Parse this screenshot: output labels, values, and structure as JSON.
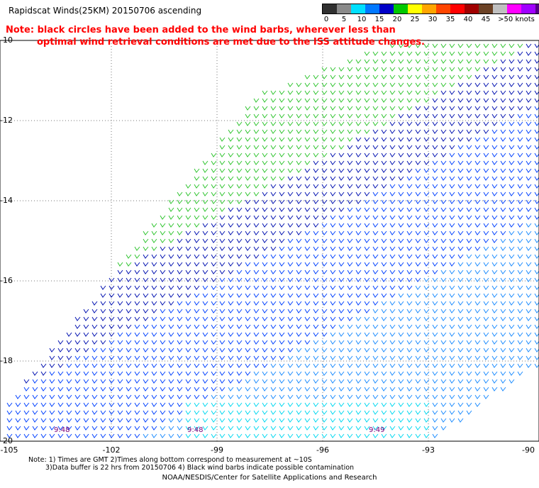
{
  "title": "Rapidscat Winds(25KM) 20150706 ascending",
  "note": {
    "line1": "Note: black circles have been added to the wind barbs, wherever less than",
    "line2": "optimal wind retrieval conditions are met due to the ISS attitude changes."
  },
  "scale": {
    "labels": [
      "0",
      "5",
      "10",
      "15",
      "20",
      "25",
      "30",
      "35",
      "40",
      "45",
      ">50 knots"
    ],
    "colors": [
      "#303030",
      "#8a8a8a",
      "#00e0ff",
      "#0078ff",
      "#0000c8",
      "#00c800",
      "#ffff00",
      "#ffa500",
      "#ff4500",
      "#ff0000",
      "#a00000",
      "#6b4226",
      "#c0c0c0",
      "#ff00ff",
      "#a000ff",
      "#550088"
    ]
  },
  "axes": {
    "lat_labels": [
      "-10",
      "-12",
      "-14",
      "-16",
      "-18",
      "-20"
    ],
    "lon_labels": [
      "-105",
      "-102",
      "-99",
      "-96",
      "-93",
      "-90"
    ]
  },
  "time_labels": [
    "9:48",
    "9:48",
    "9:49"
  ],
  "footnote": {
    "line1": "Note: 1) Times are GMT 2)Times along bottom correspond to measurement at ~10S",
    "line2": "3)Data buffer is 22 hrs from 20150706 4) Black wind barbs indicate possible contamination"
  },
  "credit": "NOAA/NESDIS/Center for Satellite Applications and Research"
}
